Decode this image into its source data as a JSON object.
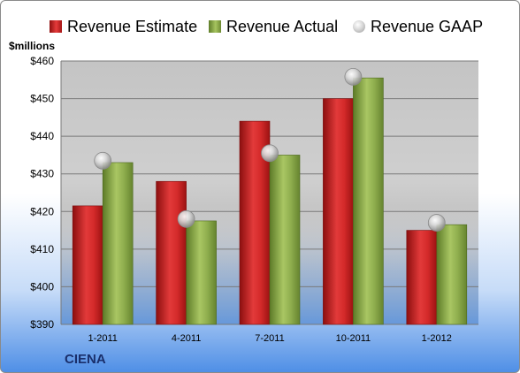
{
  "chart_data": {
    "type": "bar",
    "title": "",
    "unit_label": "$millions",
    "company": "CIENA",
    "categories": [
      "1-2011",
      "4-2011",
      "7-2011",
      "10-2011",
      "1-2012"
    ],
    "ylim": [
      390,
      460
    ],
    "y_ticks": [
      390,
      400,
      410,
      420,
      430,
      440,
      450,
      460
    ],
    "y_tick_labels": [
      "$390",
      "$400",
      "$410",
      "$420",
      "$430",
      "$440",
      "$450",
      "$460"
    ],
    "grid": true,
    "legend_position": "top",
    "series": [
      {
        "name": "Revenue Estimate",
        "kind": "bar",
        "color": "#d42a2a",
        "values": [
          421.5,
          428,
          444,
          450,
          415
        ]
      },
      {
        "name": "Revenue Actual",
        "kind": "bar",
        "color": "#8fae4e",
        "values": [
          433,
          417.5,
          435,
          455.5,
          416.5
        ]
      },
      {
        "name": "Revenue GAAP",
        "kind": "marker",
        "color": "#b8b8b8",
        "values": [
          433.5,
          418,
          435.5,
          455.8,
          417
        ]
      }
    ]
  }
}
